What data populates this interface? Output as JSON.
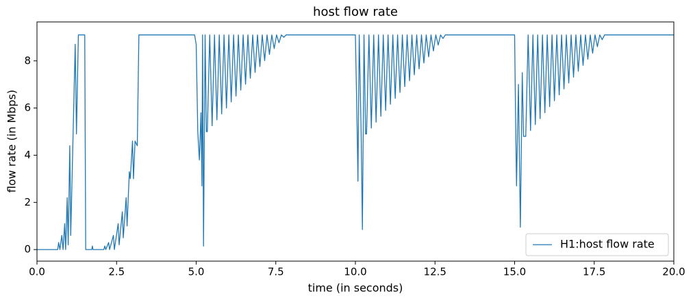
{
  "chart_data": {
    "type": "line",
    "title": "host flow rate",
    "x_label": "time (in seconds)",
    "y_label": "flow rate (in Mbps)",
    "x": [
      0,
      0.65,
      0.68,
      0.72,
      0.78,
      0.82,
      0.87,
      0.9,
      0.95,
      0.98,
      1.03,
      1.06,
      1.2,
      1.24,
      1.3,
      1.5,
      1.53,
      1.72,
      1.74,
      1.76,
      2.1,
      2.13,
      2.16,
      2.25,
      2.28,
      2.4,
      2.43,
      2.55,
      2.58,
      2.68,
      2.71,
      2.8,
      2.83,
      2.9,
      2.93,
      3.0,
      3.03,
      3.08,
      3.15,
      3.2,
      4.95,
      5.0,
      5.05,
      5.1,
      5.15,
      5.18,
      5.2,
      5.23,
      5.28,
      5.32,
      5.35,
      5.425,
      5.5,
      5.575,
      5.65,
      5.725,
      5.8,
      5.875,
      5.95,
      6.025,
      6.1,
      6.175,
      6.25,
      6.325,
      6.4,
      6.475,
      6.55,
      6.625,
      6.7,
      6.775,
      6.85,
      6.925,
      7.0,
      7.075,
      7.15,
      7.225,
      7.3,
      7.375,
      7.45,
      7.525,
      7.6,
      7.675,
      7.75,
      7.825,
      10.0,
      10.05,
      10.08,
      10.12,
      10.18,
      10.22,
      10.27,
      10.32,
      10.35,
      10.425,
      10.5,
      10.575,
      10.65,
      10.725,
      10.8,
      10.875,
      10.95,
      11.025,
      11.1,
      11.175,
      11.25,
      11.325,
      11.4,
      11.475,
      11.55,
      11.625,
      11.7,
      11.775,
      11.85,
      11.925,
      12.0,
      12.075,
      12.15,
      12.225,
      12.3,
      12.375,
      12.45,
      12.525,
      12.6,
      12.675,
      12.75,
      12.825,
      15.0,
      15.03,
      15.06,
      15.12,
      15.18,
      15.24,
      15.28,
      15.35,
      15.425,
      15.5,
      15.575,
      15.65,
      15.725,
      15.8,
      15.875,
      15.95,
      16.025,
      16.1,
      16.175,
      16.25,
      16.325,
      16.4,
      16.475,
      16.55,
      16.625,
      16.7,
      16.775,
      16.85,
      16.925,
      17.0,
      17.075,
      17.15,
      17.225,
      17.3,
      17.375,
      17.45,
      17.525,
      17.6,
      17.675,
      17.75,
      17.825,
      20
    ],
    "series": [
      {
        "name": "H1:host flow rate",
        "color": "#1f77b4",
        "values": [
          0,
          0,
          0.3,
          0,
          0.6,
          0,
          1.1,
          0,
          2.2,
          0.2,
          4.4,
          0.6,
          8.7,
          4.9,
          9.1,
          9.1,
          0,
          0,
          0.15,
          0,
          0,
          0.15,
          0,
          0.3,
          0,
          0.6,
          0,
          1.1,
          0.2,
          1.6,
          0.5,
          2.2,
          1.0,
          3.3,
          3.0,
          4.6,
          3.0,
          4.6,
          4.4,
          9.1,
          9.1,
          8.7,
          5.0,
          3.8,
          5.8,
          2.7,
          9.1,
          0.15,
          9.1,
          5.0,
          5.0,
          9.1,
          5.25,
          9.1,
          5.5,
          9.1,
          5.75,
          9.1,
          6.0,
          9.1,
          6.26,
          9.1,
          6.51,
          9.1,
          6.76,
          9.1,
          7.01,
          9.1,
          7.26,
          9.1,
          7.51,
          9.1,
          7.76,
          9.1,
          8.01,
          9.1,
          8.27,
          9.1,
          8.52,
          9.1,
          8.77,
          9.1,
          9.0,
          9.1,
          9.1,
          5.5,
          2.9,
          9.1,
          5.0,
          0.85,
          9.1,
          4.9,
          4.9,
          9.1,
          5.15,
          9.1,
          5.4,
          9.1,
          5.65,
          9.1,
          5.9,
          9.1,
          6.16,
          9.1,
          6.41,
          9.1,
          6.66,
          9.1,
          6.91,
          9.1,
          7.16,
          9.1,
          7.41,
          9.1,
          7.66,
          9.1,
          7.91,
          9.1,
          8.17,
          9.1,
          8.42,
          9.1,
          8.67,
          9.1,
          8.95,
          9.1,
          9.1,
          5.6,
          2.7,
          7.0,
          0.95,
          7.5,
          4.8,
          4.8,
          9.1,
          5.05,
          9.1,
          5.3,
          9.1,
          5.55,
          9.1,
          5.8,
          9.1,
          6.06,
          9.1,
          6.31,
          9.1,
          6.56,
          9.1,
          6.81,
          9.1,
          7.06,
          9.1,
          7.31,
          9.1,
          7.56,
          9.1,
          7.81,
          9.1,
          8.07,
          9.1,
          8.32,
          9.1,
          8.6,
          9.1,
          8.9,
          9.1,
          9.1
        ]
      }
    ],
    "xlim": [
      0,
      20
    ],
    "ylim": [
      -0.49,
      9.65
    ],
    "xticks": [
      {
        "value": 0,
        "label": "0.0"
      },
      2.5,
      {
        "value": 5,
        "label": "5.0"
      },
      7.5,
      {
        "value": 10,
        "label": "10.0"
      },
      12.5,
      {
        "value": 15,
        "label": "15.0"
      },
      17.5,
      {
        "value": 20,
        "label": "20.0"
      }
    ],
    "yticks": [
      0,
      2,
      4,
      6,
      8
    ],
    "grid": false,
    "legend": "lower right"
  }
}
